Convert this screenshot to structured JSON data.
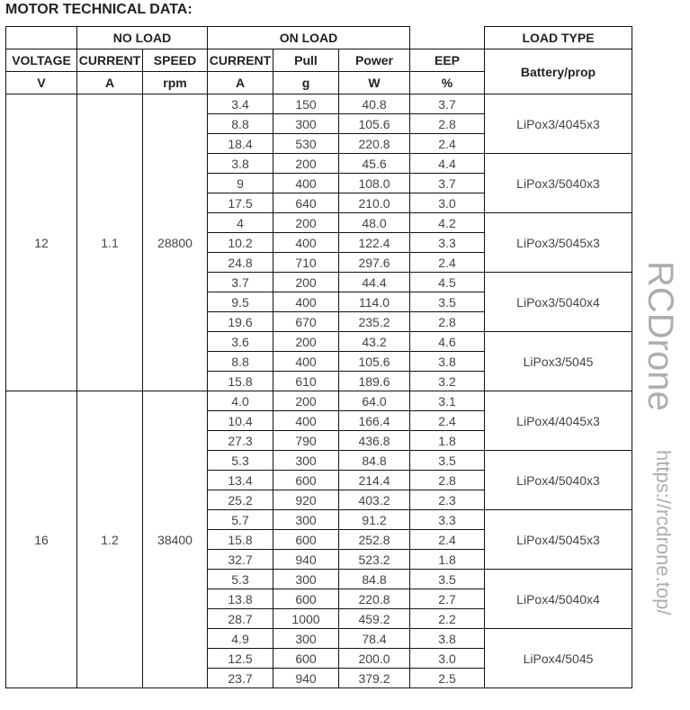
{
  "title": "MOTOR TECHNICAL DATA:",
  "header": {
    "no_load": "NO LOAD",
    "on_load": "ON LOAD",
    "load_type": "LOAD TYPE",
    "cols": [
      "VOLTAGE",
      "CURRENT",
      "SPEED",
      "CURRENT",
      "Pull",
      "Power",
      "EEP"
    ],
    "units": [
      "V",
      "A",
      "rpm",
      "A",
      "g",
      "W",
      "%"
    ],
    "battery_prop": "Battery/prop"
  },
  "groups": [
    {
      "voltage": "12",
      "current": "1.1",
      "speed": "28800",
      "loads": [
        {
          "type": "LiPox3/4045x3",
          "rows": [
            [
              "3.4",
              "150",
              "40.8",
              "3.7"
            ],
            [
              "8.8",
              "300",
              "105.6",
              "2.8"
            ],
            [
              "18.4",
              "530",
              "220.8",
              "2.4"
            ]
          ]
        },
        {
          "type": "LiPox3/5040x3",
          "rows": [
            [
              "3.8",
              "200",
              "45.6",
              "4.4"
            ],
            [
              "9",
              "400",
              "108.0",
              "3.7"
            ],
            [
              "17.5",
              "640",
              "210.0",
              "3.0"
            ]
          ]
        },
        {
          "type": "LiPox3/5045x3",
          "rows": [
            [
              "4",
              "200",
              "48.0",
              "4.2"
            ],
            [
              "10.2",
              "400",
              "122.4",
              "3.3"
            ],
            [
              "24.8",
              "710",
              "297.6",
              "2.4"
            ]
          ]
        },
        {
          "type": "LiPox3/5040x4",
          "rows": [
            [
              "3.7",
              "200",
              "44.4",
              "4.5"
            ],
            [
              "9.5",
              "400",
              "114.0",
              "3.5"
            ],
            [
              "19.6",
              "670",
              "235.2",
              "2.8"
            ]
          ]
        },
        {
          "type": "LiPox3/5045",
          "rows": [
            [
              "3.6",
              "200",
              "43.2",
              "4.6"
            ],
            [
              "8.8",
              "400",
              "105.6",
              "3.8"
            ],
            [
              "15.8",
              "610",
              "189.6",
              "3.2"
            ]
          ]
        }
      ]
    },
    {
      "voltage": "16",
      "current": "1.2",
      "speed": "38400",
      "loads": [
        {
          "type": "LiPox4/4045x3",
          "rows": [
            [
              "4.0",
              "200",
              "64.0",
              "3.1"
            ],
            [
              "10.4",
              "400",
              "166.4",
              "2.4"
            ],
            [
              "27.3",
              "790",
              "436.8",
              "1.8"
            ]
          ]
        },
        {
          "type": "LiPox4/5040x3",
          "rows": [
            [
              "5.3",
              "300",
              "84.8",
              "3.5"
            ],
            [
              "13.4",
              "600",
              "214.4",
              "2.8"
            ],
            [
              "25.2",
              "920",
              "403.2",
              "2.3"
            ]
          ]
        },
        {
          "type": "LiPox4/5045x3",
          "rows": [
            [
              "5.7",
              "300",
              "91.2",
              "3.3"
            ],
            [
              "15.8",
              "600",
              "252.8",
              "2.4"
            ],
            [
              "32.7",
              "940",
              "523.2",
              "1.8"
            ]
          ]
        },
        {
          "type": "LiPox4/5040x4",
          "rows": [
            [
              "5.3",
              "300",
              "84.8",
              "3.5"
            ],
            [
              "13.8",
              "600",
              "220.8",
              "2.7"
            ],
            [
              "28.7",
              "1000",
              "459.2",
              "2.2"
            ]
          ]
        },
        {
          "type": "LiPox4/5045",
          "rows": [
            [
              "4.9",
              "300",
              "78.4",
              "3.8"
            ],
            [
              "12.5",
              "600",
              "200.0",
              "3.0"
            ],
            [
              "23.7",
              "940",
              "379.2",
              "2.5"
            ]
          ]
        }
      ]
    }
  ],
  "watermarks": [
    "RCDrone",
    "https://rcdrone.top/"
  ]
}
